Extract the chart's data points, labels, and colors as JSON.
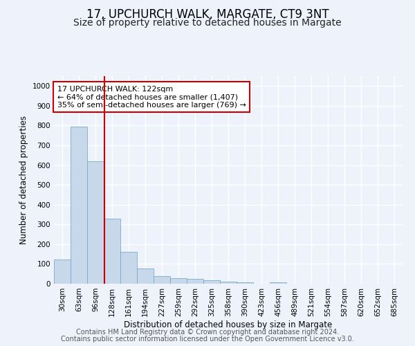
{
  "title": "17, UPCHURCH WALK, MARGATE, CT9 3NT",
  "subtitle": "Size of property relative to detached houses in Margate",
  "xlabel": "Distribution of detached houses by size in Margate",
  "ylabel": "Number of detached properties",
  "bar_color": "#c8d8eb",
  "bar_edge_color": "#7aaac8",
  "background_color": "#edf2fb",
  "grid_color": "#ffffff",
  "annotation_text": "17 UPCHURCH WALK: 122sqm\n← 64% of detached houses are smaller (1,407)\n35% of semi-detached houses are larger (769) →",
  "annotation_box_color": "#ffffff",
  "annotation_box_edge_color": "#cc0000",
  "vline_position": 2.55,
  "vline_color": "#cc0000",
  "categories": [
    "30sqm",
    "63sqm",
    "96sqm",
    "128sqm",
    "161sqm",
    "194sqm",
    "227sqm",
    "259sqm",
    "292sqm",
    "325sqm",
    "358sqm",
    "390sqm",
    "423sqm",
    "456sqm",
    "489sqm",
    "521sqm",
    "554sqm",
    "587sqm",
    "620sqm",
    "652sqm",
    "685sqm"
  ],
  "values": [
    122,
    793,
    620,
    328,
    160,
    78,
    40,
    28,
    24,
    18,
    12,
    8,
    0,
    8,
    0,
    0,
    0,
    0,
    0,
    0,
    0
  ],
  "ylim": [
    0,
    1050
  ],
  "yticks": [
    0,
    100,
    200,
    300,
    400,
    500,
    600,
    700,
    800,
    900,
    1000
  ],
  "footer_line1": "Contains HM Land Registry data © Crown copyright and database right 2024.",
  "footer_line2": "Contains public sector information licensed under the Open Government Licence v3.0.",
  "title_fontsize": 12,
  "subtitle_fontsize": 10,
  "axis_label_fontsize": 8.5,
  "tick_fontsize": 7.5,
  "annotation_fontsize": 8,
  "footer_fontsize": 7
}
